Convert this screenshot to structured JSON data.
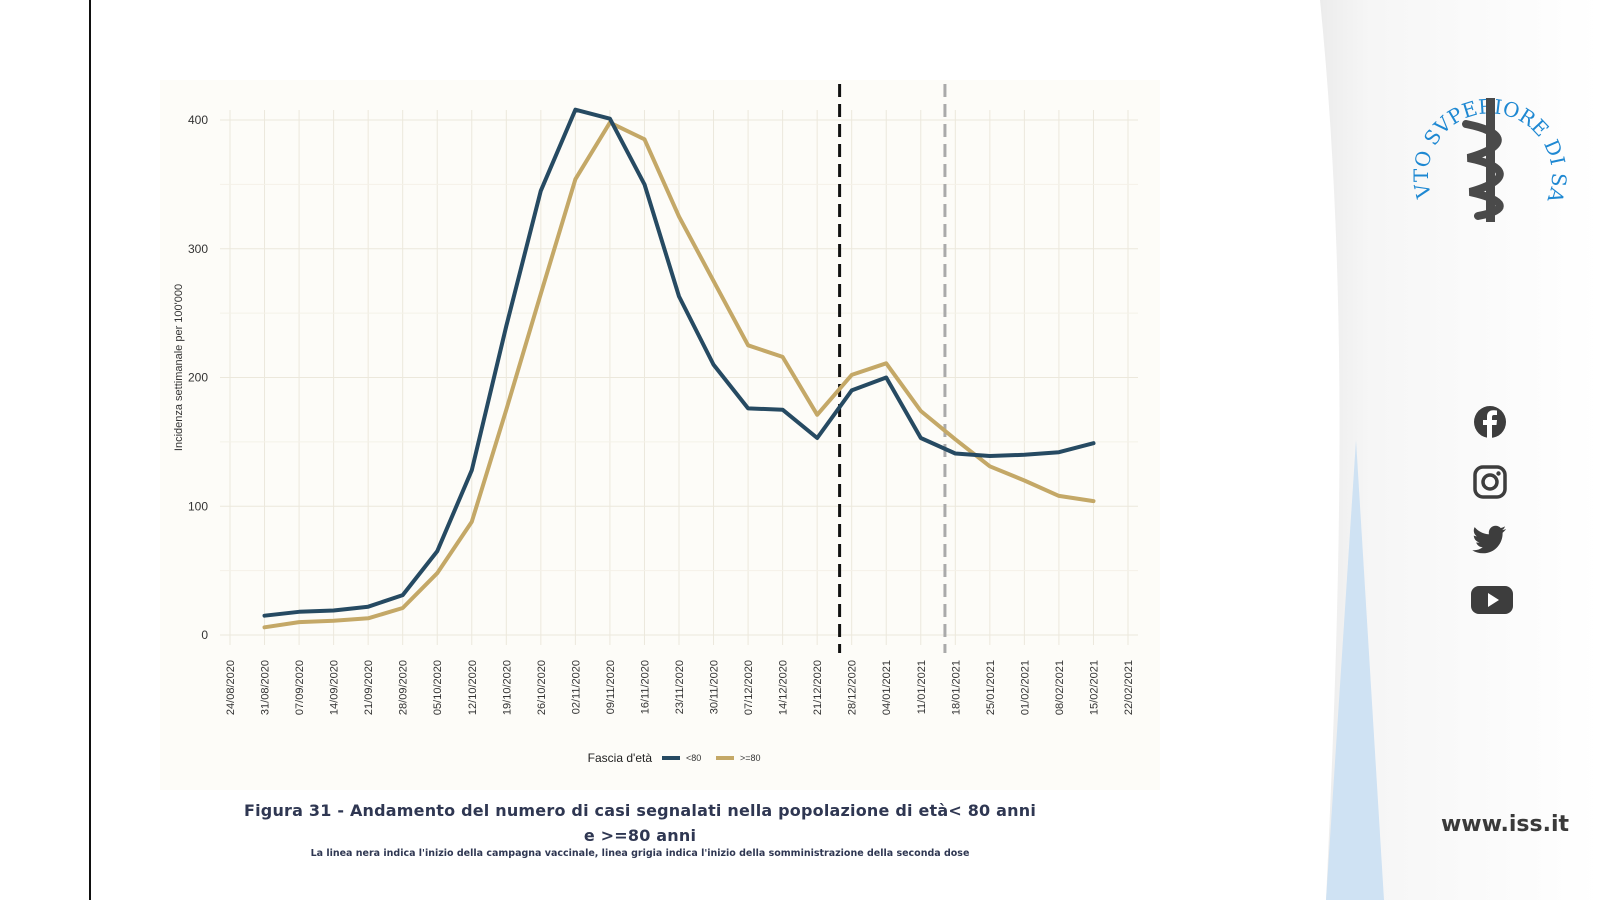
{
  "chart_data": {
    "type": "line",
    "x": [
      "24/08/2020",
      "31/08/2020",
      "07/09/2020",
      "14/09/2020",
      "21/09/2020",
      "28/09/2020",
      "05/10/2020",
      "12/10/2020",
      "19/10/2020",
      "26/10/2020",
      "02/11/2020",
      "09/11/2020",
      "16/11/2020",
      "23/11/2020",
      "30/11/2020",
      "07/12/2020",
      "14/12/2020",
      "21/12/2020",
      "28/12/2020",
      "04/01/2021",
      "11/01/2021",
      "18/01/2021",
      "25/01/2021",
      "01/02/2021",
      "08/02/2021",
      "15/02/2021",
      "22/02/2021"
    ],
    "ylabel": "Incidenza settimanale per 100'000",
    "ylim": [
      0,
      400
    ],
    "yticks": [
      0,
      100,
      200,
      300,
      400
    ],
    "grid": true,
    "legend": {
      "title": "Fascia d'età",
      "placement": "bottom"
    },
    "series": [
      {
        "name": "<80",
        "color": "#264a62",
        "values": [
          null,
          15,
          18,
          19,
          22,
          31,
          65,
          128,
          240,
          345,
          408,
          401,
          350,
          263,
          210,
          176,
          175,
          153,
          190,
          200,
          153,
          141,
          139,
          140,
          142,
          149,
          null
        ]
      },
      {
        "name": ">=80",
        "color": "#c4a867",
        "values": [
          null,
          6,
          10,
          11,
          13,
          21,
          48,
          88,
          175,
          265,
          354,
          398,
          385,
          325,
          275,
          225,
          216,
          171,
          202,
          211,
          174,
          152,
          131,
          120,
          108,
          104,
          null
        ]
      }
    ],
    "annotations": [
      {
        "type": "vline",
        "at": "28/12/2020",
        "offset": -0.35,
        "color": "#111111",
        "style": "dashed"
      },
      {
        "type": "vline",
        "at": "18/01/2021",
        "offset": -0.3,
        "color": "#aaaaaa",
        "style": "dashed"
      }
    ]
  },
  "caption": {
    "line1": "Figura 31 - Andamento del numero di casi segnalati nella popolazione di età< 80 anni",
    "line2": "e >=80 anni",
    "note": "La linea nera indica l'inizio della campagna vaccinale, linea grigia indica l'inizio della somministrazione della seconda dose"
  },
  "logo": {
    "text": "ISTITVTO SVPERIORE DI SANITÀ",
    "color": "#1e88d2"
  },
  "social_icons": [
    "facebook-icon",
    "instagram-icon",
    "twitter-icon",
    "youtube-icon"
  ],
  "site_url": "www.iss.it"
}
